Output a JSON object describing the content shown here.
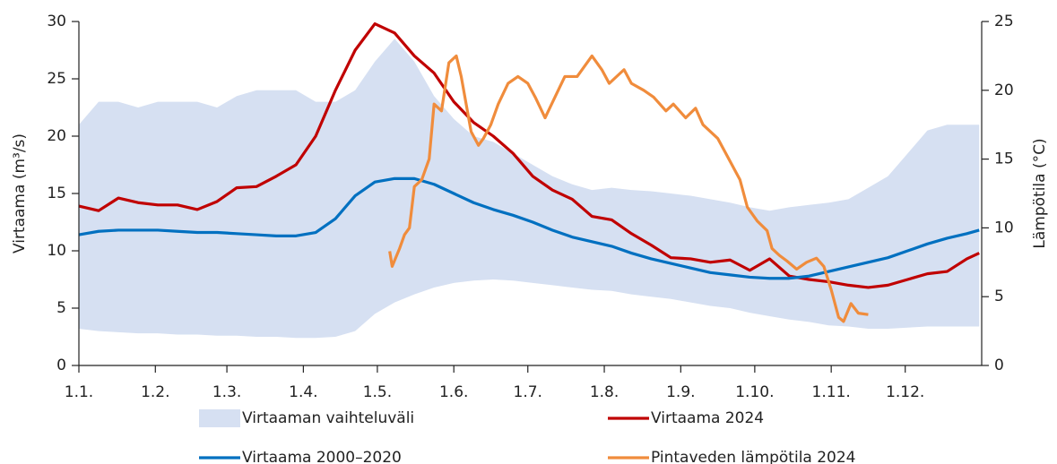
{
  "chart_data": {
    "type": "line",
    "y_label": "Virtaama (m³/s)",
    "y2_label": "Lämpötila (°C)",
    "xlim": [
      0,
      366
    ],
    "xticks": [
      {
        "value": 0,
        "label": "1.1."
      },
      {
        "value": 31,
        "label": "1.2."
      },
      {
        "value": 60,
        "label": "1.3."
      },
      {
        "value": 91,
        "label": "1.4."
      },
      {
        "value": 121,
        "label": "1.5."
      },
      {
        "value": 152,
        "label": "1.6."
      },
      {
        "value": 182,
        "label": "1.7."
      },
      {
        "value": 213,
        "label": "1.8."
      },
      {
        "value": 244,
        "label": "1.9."
      },
      {
        "value": 274,
        "label": "1.10."
      },
      {
        "value": 305,
        "label": "1.11."
      },
      {
        "value": 335,
        "label": "1.12."
      }
    ],
    "ylim": [
      0,
      30
    ],
    "yticks": [
      0,
      5,
      10,
      15,
      20,
      25,
      30
    ],
    "y2lim": [
      0,
      25
    ],
    "y2ticks": [
      0,
      5,
      10,
      15,
      20,
      25
    ],
    "x": [
      0,
      8,
      16,
      24,
      32,
      40,
      48,
      56,
      64,
      72,
      80,
      88,
      96,
      104,
      112,
      120,
      128,
      136,
      144,
      152,
      160,
      168,
      176,
      184,
      192,
      200,
      208,
      216,
      224,
      232,
      240,
      248,
      256,
      264,
      272,
      280,
      288,
      296,
      304,
      312,
      320,
      328,
      336,
      344,
      352,
      360,
      365
    ],
    "series": [
      {
        "name": "Virtaaman vaihteluväli",
        "kind": "band",
        "color": "#d6e0f2",
        "upper": [
          21,
          23,
          23,
          22.5,
          23,
          23,
          23,
          22.5,
          23.5,
          24,
          24,
          24,
          23,
          23,
          24,
          26.5,
          28.5,
          26.5,
          23.5,
          21.5,
          20,
          19.5,
          18.5,
          17.5,
          16.5,
          15.8,
          15.3,
          15.5,
          15.3,
          15.2,
          15,
          14.8,
          14.5,
          14.2,
          13.8,
          13.5,
          13.8,
          14,
          14.2,
          14.5,
          15.5,
          16.5,
          18.5,
          20.5,
          21,
          21,
          21
        ],
        "lower": [
          3.2,
          3,
          2.9,
          2.8,
          2.8,
          2.7,
          2.7,
          2.6,
          2.6,
          2.5,
          2.5,
          2.4,
          2.4,
          2.5,
          3,
          4.5,
          5.5,
          6.2,
          6.8,
          7.2,
          7.4,
          7.5,
          7.4,
          7.2,
          7,
          6.8,
          6.6,
          6.5,
          6.2,
          6,
          5.8,
          5.5,
          5.2,
          5,
          4.6,
          4.3,
          4,
          3.8,
          3.5,
          3.4,
          3.2,
          3.2,
          3.3,
          3.4,
          3.4,
          3.4,
          3.4
        ]
      },
      {
        "name": "Virtaama 2024",
        "color": "#c00000",
        "values": [
          13.9,
          13.5,
          14.6,
          14.2,
          14,
          14,
          13.6,
          14.3,
          15.5,
          15.6,
          16.5,
          17.5,
          20,
          24,
          27.5,
          29.8,
          29,
          27,
          25.5,
          23,
          21.2,
          20,
          18.5,
          16.5,
          15.3,
          14.5,
          13,
          12.7,
          11.5,
          10.5,
          9.4,
          9.3,
          9,
          9.2,
          8.3,
          9.3,
          7.8,
          7.5,
          7.3,
          7,
          6.8,
          7,
          7.5,
          8,
          8.2,
          9.3,
          9.8
        ]
      },
      {
        "name": "Virtaama 2000–2020",
        "color": "#0070c0",
        "values": [
          11.4,
          11.7,
          11.8,
          11.8,
          11.8,
          11.7,
          11.6,
          11.6,
          11.5,
          11.4,
          11.3,
          11.3,
          11.6,
          12.8,
          14.8,
          16,
          16.3,
          16.3,
          15.8,
          15,
          14.2,
          13.6,
          13.1,
          12.5,
          11.8,
          11.2,
          10.8,
          10.4,
          9.8,
          9.3,
          8.9,
          8.5,
          8.1,
          7.9,
          7.7,
          7.6,
          7.6,
          7.8,
          8.2,
          8.6,
          9,
          9.4,
          10,
          10.6,
          11.1,
          11.5,
          11.8
        ]
      },
      {
        "name": "Pintaveden lämpötila 2024",
        "color": "#f08c3c",
        "axis": "y2",
        "x": [
          126,
          127,
          130,
          132,
          134,
          136,
          139,
          142,
          144,
          147,
          150,
          153,
          155,
          157,
          159,
          162,
          164,
          167,
          170,
          174,
          178,
          182,
          185,
          189,
          193,
          197,
          202,
          208,
          212,
          215,
          221,
          224,
          229,
          233,
          238,
          241,
          246,
          250,
          253,
          259,
          262,
          268,
          271,
          275,
          279,
          281,
          284,
          287,
          291,
          295,
          299,
          302,
          305,
          308,
          310,
          313,
          316,
          320
        ],
        "values": [
          8.3,
          7.2,
          8.5,
          9.5,
          10,
          13,
          13.5,
          15,
          19,
          18.5,
          22,
          22.5,
          21,
          19,
          17,
          16,
          16.5,
          17.5,
          19,
          20.5,
          21,
          20.5,
          19.5,
          18,
          19.5,
          21,
          21,
          22.5,
          21.5,
          20.5,
          21.5,
          20.5,
          20,
          19.5,
          18.5,
          19,
          18,
          18.7,
          17.5,
          16.5,
          15.5,
          13.5,
          11.5,
          10.5,
          9.8,
          8.5,
          8,
          7.6,
          7,
          7.5,
          7.8,
          7.2,
          5.5,
          3.5,
          3.2,
          4.5,
          3.8,
          3.7
        ]
      }
    ]
  }
}
